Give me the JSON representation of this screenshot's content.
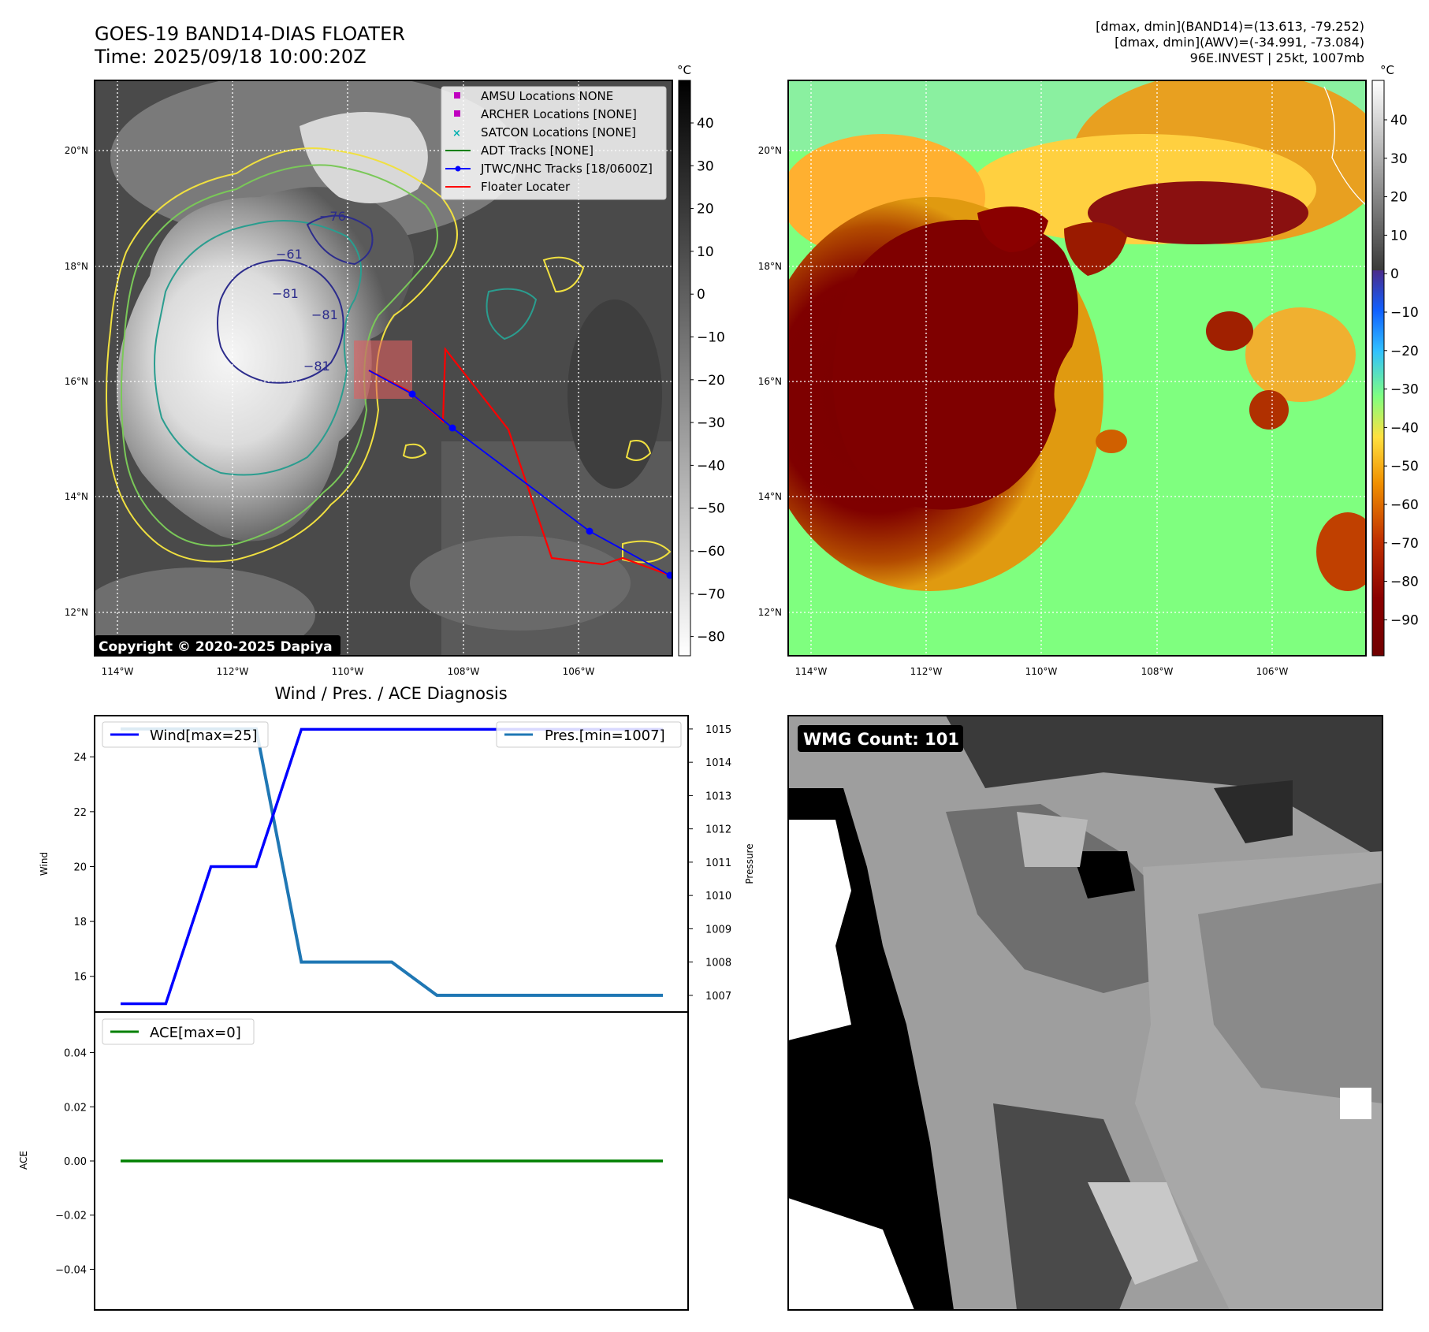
{
  "header": {
    "title_line1": "GOES-19 BAND14-DIAS FLOATER",
    "title_line2": "Time: 2025/09/18 10:00:20Z",
    "info_line1": "[dmax, dmin](BAND14)=(13.613, -79.252)",
    "info_line2": "[dmax, dmin](AWV)=(-34.991, -73.084)",
    "info_line3": "96E.INVEST | 25kt, 1007mb"
  },
  "map_left": {
    "lon_ticks": [
      "114°W",
      "112°W",
      "110°W",
      "108°W",
      "106°W"
    ],
    "lat_ticks": [
      "20°N",
      "18°N",
      "16°N",
      "14°N",
      "12°N"
    ],
    "colorbar_unit": "°C",
    "colorbar_ticks": [
      "40",
      "30",
      "20",
      "10",
      "0",
      "−10",
      "−20",
      "−30",
      "−40",
      "−50",
      "−60",
      "−70",
      "−80"
    ],
    "copyright": "Copyright © 2020-2025 Dapiya",
    "contour_labels": [
      "−76",
      "−61",
      "−81",
      "−81",
      "−81"
    ],
    "legend": [
      {
        "label": "AMSU Locations NONE",
        "color": "#c000c0",
        "marker": "square"
      },
      {
        "label": "ARCHER Locations [NONE]",
        "color": "#c000c0",
        "marker": "square"
      },
      {
        "label": "SATCON Locations [NONE]",
        "color": "#00b0b0",
        "marker": "x"
      },
      {
        "label": "ADT Tracks [NONE]",
        "color": "#008000",
        "marker": "line"
      },
      {
        "label": "JTWC/NHC Tracks [18/0600Z]",
        "color": "#0000ff",
        "marker": "line-dot"
      },
      {
        "label": "Floater Locater",
        "color": "#ff0000",
        "marker": "line"
      }
    ]
  },
  "map_right": {
    "lon_ticks": [
      "114°W",
      "112°W",
      "110°W",
      "108°W",
      "106°W"
    ],
    "lat_ticks": [
      "20°N",
      "18°N",
      "16°N",
      "14°N",
      "12°N"
    ],
    "colorbar_unit": "°C",
    "colorbar_ticks": [
      "40",
      "30",
      "20",
      "10",
      "0",
      "−10",
      "−20",
      "−30",
      "−40",
      "−50",
      "−60",
      "−70",
      "−80",
      "−90"
    ]
  },
  "wmg_panel": {
    "label": "WMG Count: 101"
  },
  "chart_data": [
    {
      "type": "line",
      "title": "Wind / Pres. / ACE Diagnosis",
      "x": [
        0,
        1,
        2,
        3,
        4,
        5,
        6,
        7,
        8,
        9,
        10,
        11,
        12
      ],
      "series": [
        {
          "name": "Wind[max=25]",
          "axis": "left",
          "color": "#0000ff",
          "values": [
            15,
            15,
            20,
            20,
            25,
            25,
            25,
            25,
            25,
            25,
            25,
            25,
            25
          ]
        },
        {
          "name": "Pres.[min=1007]",
          "axis": "right",
          "color": "#1f77b4",
          "values": [
            1015,
            1015,
            1015,
            1015,
            1008,
            1008,
            1008,
            1007,
            1007,
            1007,
            1007,
            1007,
            1007
          ]
        }
      ],
      "ylabel": "Wind",
      "y2label": "Pressure",
      "ylim": [
        14.7,
        25.5
      ],
      "y2lim": [
        1006.5,
        1015.4
      ],
      "yticks": [
        16,
        18,
        20,
        22,
        24
      ],
      "y2ticks": [
        1007,
        1008,
        1009,
        1010,
        1011,
        1012,
        1013,
        1014,
        1015
      ],
      "legend_positions": [
        "top-left",
        "top-right"
      ]
    },
    {
      "type": "line",
      "x": [
        0,
        1,
        2,
        3,
        4,
        5,
        6,
        7,
        8,
        9,
        10,
        11,
        12
      ],
      "series": [
        {
          "name": "ACE[max=0]",
          "color": "#008000",
          "values": [
            0,
            0,
            0,
            0,
            0,
            0,
            0,
            0,
            0,
            0,
            0,
            0,
            0
          ]
        }
      ],
      "ylabel": "ACE",
      "ylim": [
        -0.055,
        0.055
      ],
      "yticks": [
        "0.04",
        "0.02",
        "0.00",
        "−0.02",
        "−0.04"
      ],
      "yticks_values": [
        0.04,
        0.02,
        0,
        -0.02,
        -0.04
      ],
      "legend_position": "top-left"
    }
  ]
}
